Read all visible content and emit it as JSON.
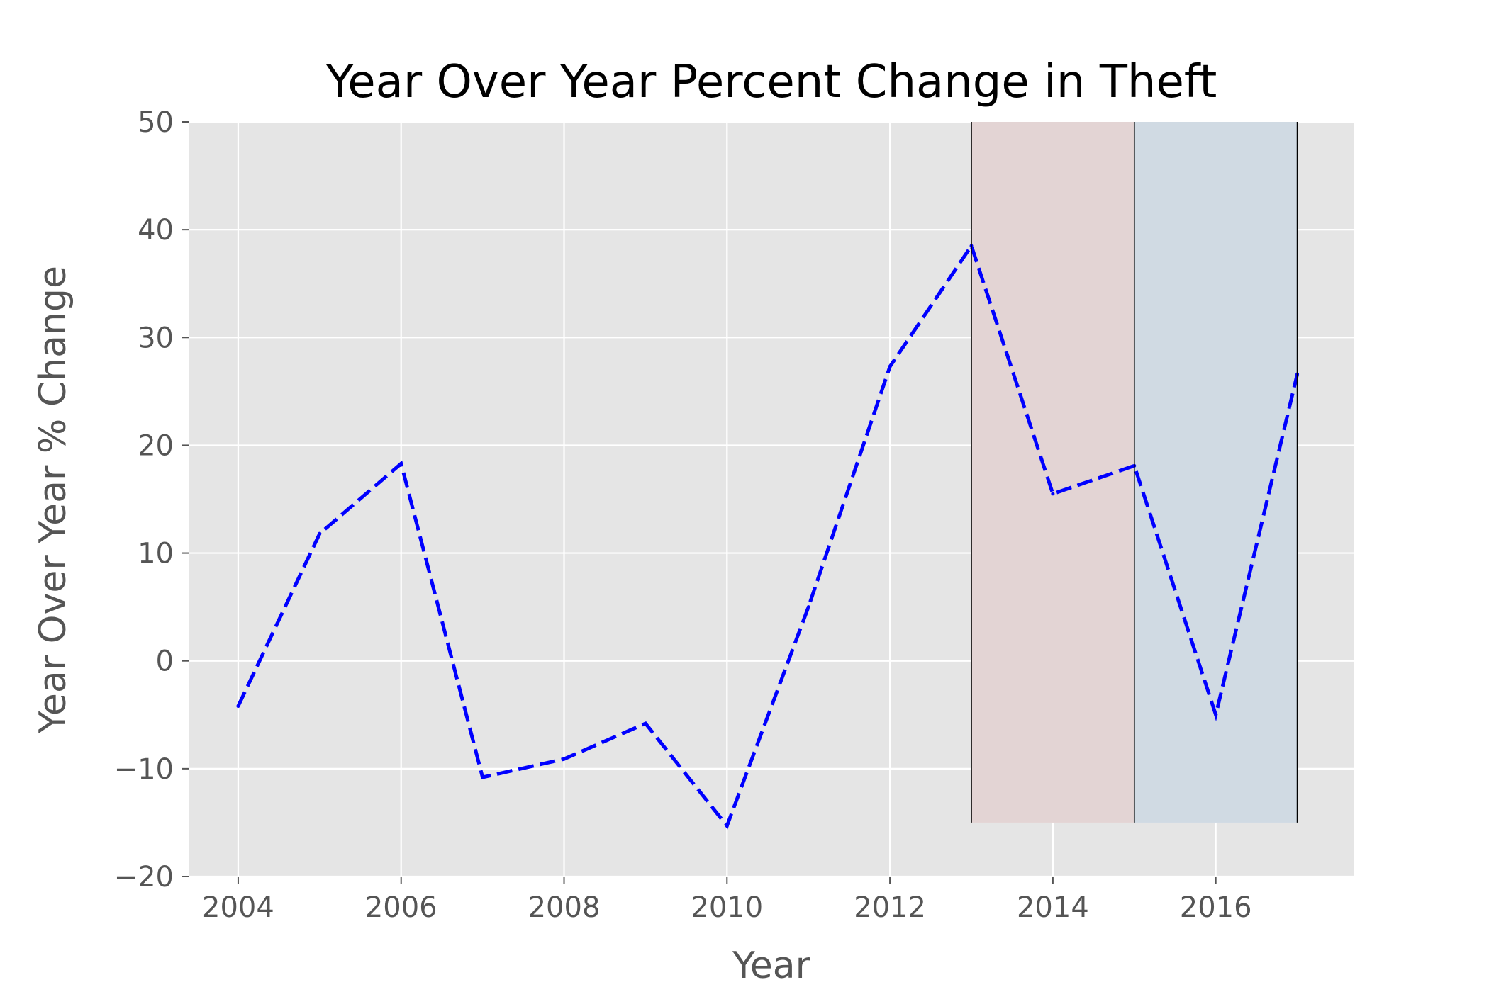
{
  "chart_data": {
    "type": "line",
    "title": "Year Over Year Percent Change in Theft",
    "xlabel": "Year",
    "ylabel": "Year Over Year % Change",
    "xlim": [
      2003.4,
      2017.7
    ],
    "ylim": [
      -20,
      50
    ],
    "xticks": [
      2004,
      2006,
      2008,
      2010,
      2012,
      2014,
      2016
    ],
    "xtick_labels": [
      "2004",
      "2006",
      "2008",
      "2010",
      "2012",
      "2014",
      "2016"
    ],
    "yticks": [
      -20,
      -10,
      0,
      10,
      20,
      30,
      40,
      50
    ],
    "ytick_labels": [
      "−20",
      "−10",
      "0",
      "10",
      "20",
      "30",
      "40",
      "50"
    ],
    "grid": true,
    "series": [
      {
        "color": "#0000ff",
        "style": "dashed",
        "x": [
          2004,
          2005,
          2006,
          2007,
          2008,
          2009,
          2010,
          2011,
          2012,
          2013,
          2014,
          2015,
          2016,
          2017
        ],
        "y": [
          -4.2,
          11.8,
          18.3,
          -10.8,
          -9.1,
          -5.8,
          -15.3,
          5.0,
          27.3,
          38.5,
          15.5,
          18.1,
          -5.0,
          26.6
        ]
      }
    ],
    "shaded_regions": [
      {
        "x_start": 2013,
        "x_end": 2015,
        "y_start": -15,
        "y_end": 50,
        "color": "#e3d4d4"
      },
      {
        "x_start": 2015,
        "x_end": 2017,
        "y_start": -15,
        "y_end": 50,
        "color": "#d0dae3"
      }
    ],
    "vertical_lines": [
      {
        "x": 2013,
        "y_start": -15,
        "y_end": 50
      },
      {
        "x": 2015,
        "y_start": -15,
        "y_end": 50
      },
      {
        "x": 2017,
        "y_start": -15,
        "y_end": 50
      }
    ]
  }
}
